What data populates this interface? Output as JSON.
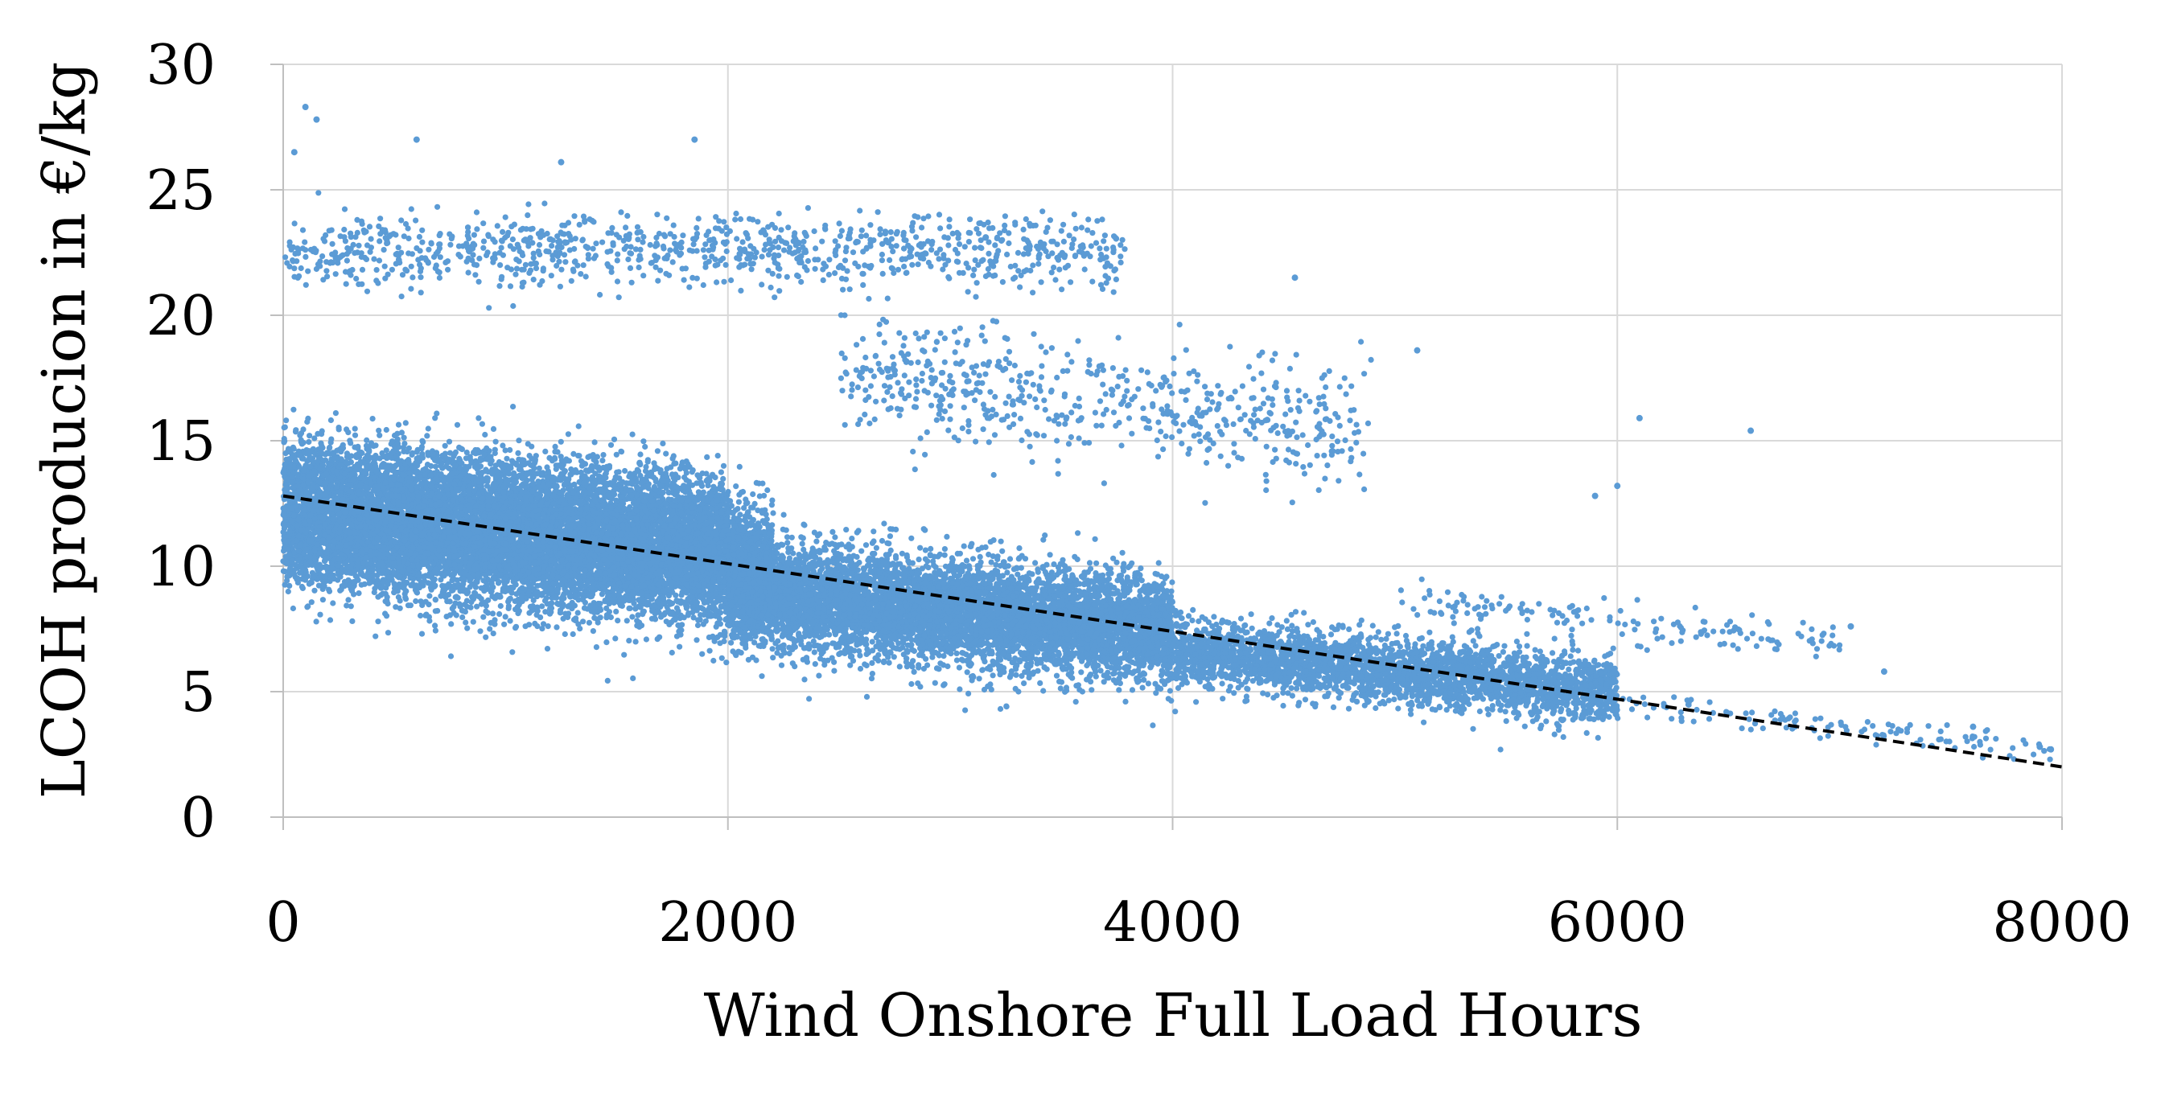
{
  "chart_data": {
    "type": "scatter",
    "title": "",
    "xlabel": "Wind Onshore Full Load Hours",
    "ylabel": "LCOH producion in €/kg",
    "xlim": [
      0,
      8000
    ],
    "ylim": [
      0,
      30
    ],
    "x_ticks": [
      "0",
      "2000",
      "4000",
      "6000",
      "8000"
    ],
    "y_ticks": [
      "0",
      "5",
      "10",
      "15",
      "20",
      "25",
      "30"
    ],
    "grid": true,
    "series": [
      {
        "name": "LCOH",
        "color": "#5B9BD5",
        "marker": "dot",
        "clusters": [
          {
            "x_range": [
              0,
              2200
            ],
            "y_center": 10.8,
            "y_spread": 2.2,
            "count": 9000
          },
          {
            "x_range": [
              0,
              2000
            ],
            "y_center": 13.0,
            "y_spread": 1.6,
            "count": 2500
          },
          {
            "x_range": [
              2000,
              4000
            ],
            "y_center": 8.2,
            "y_spread": 1.9,
            "count": 7000
          },
          {
            "x_range": [
              4000,
              6000
            ],
            "y_center": 5.8,
            "y_spread": 1.2,
            "count": 3000
          },
          {
            "x_range": [
              0,
              3800
            ],
            "y_center": 22.6,
            "y_spread": 1.3,
            "count": 1000
          },
          {
            "x_range": [
              2500,
              4900
            ],
            "y_center": 16.5,
            "y_spread": 2.2,
            "count": 600
          },
          {
            "x_range": [
              5000,
              7000
            ],
            "y_center": 7.8,
            "y_spread": 0.6,
            "count": 150
          },
          {
            "x_range": [
              6000,
              7950
            ],
            "y_center": 3.6,
            "y_spread": 0.5,
            "count": 120
          }
        ],
        "sample_points": [
          {
            "x": 50,
            "y": 26.5
          },
          {
            "x": 100,
            "y": 28.3
          },
          {
            "x": 150,
            "y": 27.8
          },
          {
            "x": 600,
            "y": 27.0
          },
          {
            "x": 1250,
            "y": 26.1
          },
          {
            "x": 1850,
            "y": 27.0
          },
          {
            "x": 4550,
            "y": 21.5
          },
          {
            "x": 5100,
            "y": 18.6
          },
          {
            "x": 6100,
            "y": 15.9
          },
          {
            "x": 6600,
            "y": 15.4
          },
          {
            "x": 6000,
            "y": 13.2
          },
          {
            "x": 5900,
            "y": 12.8
          },
          {
            "x": 7050,
            "y": 7.6
          },
          {
            "x": 7600,
            "y": 3.6
          },
          {
            "x": 7900,
            "y": 2.8
          },
          {
            "x": 7950,
            "y": 2.7
          },
          {
            "x": 7200,
            "y": 5.8
          }
        ]
      },
      {
        "name": "Trendline",
        "type": "line",
        "style": "dashed",
        "color": "#000000",
        "x": [
          0,
          8000
        ],
        "y": [
          12.8,
          2.0
        ]
      }
    ]
  }
}
